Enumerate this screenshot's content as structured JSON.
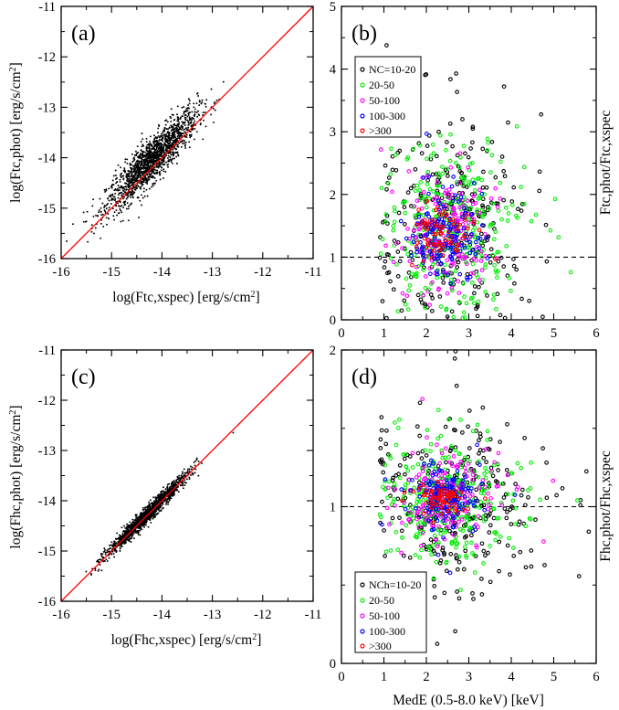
{
  "chart_data": [
    {
      "panel": "a",
      "type": "scatter",
      "panel_label": "(a)",
      "xlabel": "log(Ftc,xspec) [erg/s/cm",
      "ylabel": "log(Ftc,phot) [erg/s/cm",
      "unit_exponent": "2",
      "xlim": [
        -16,
        -11
      ],
      "ylim": [
        -16,
        -11
      ],
      "xticks": [
        "-16",
        "-15",
        "-14",
        "-13",
        "-12",
        "-11"
      ],
      "yticks": [
        "-16",
        "-15",
        "-14",
        "-13",
        "-12",
        "-11"
      ],
      "reference_line": {
        "type": "y=x",
        "color": "#ff0000"
      },
      "series": [
        {
          "color": "#000000",
          "n_points": 1600,
          "x_center": -14.2,
          "x_spread": 0.45,
          "bias": 0.15,
          "y_scatter": 0.22
        }
      ]
    },
    {
      "panel": "b",
      "type": "scatter",
      "panel_label": "(b)",
      "xlabel": "",
      "ylabel": "Ftc,phot/Ftc,xspec",
      "xlim": [
        0,
        6
      ],
      "ylim": [
        0,
        5
      ],
      "xticks": [
        "0",
        "1",
        "2",
        "3",
        "4",
        "5",
        "6"
      ],
      "yticks": [
        "0",
        "1",
        "2",
        "3",
        "4",
        "5"
      ],
      "reference_line": {
        "type": "y=1",
        "style": "dashed",
        "color": "#000000"
      },
      "legend_position": "upper-left",
      "series": [
        {
          "name": "NC=10-20",
          "color": "#000000",
          "n_points": 300,
          "x_center": 2.6,
          "x_spread": 1.0,
          "y_center": 1.5,
          "y_spread": 0.85
        },
        {
          "name": "20-50",
          "color": "#00ee00",
          "n_points": 330,
          "x_center": 2.5,
          "x_spread": 0.8,
          "y_center": 1.45,
          "y_spread": 0.65
        },
        {
          "name": "50-100",
          "color": "#ff00ff",
          "n_points": 160,
          "x_center": 2.5,
          "x_spread": 0.6,
          "y_center": 1.4,
          "y_spread": 0.45
        },
        {
          "name": "100-300",
          "color": "#0000ff",
          "n_points": 150,
          "x_center": 2.45,
          "x_spread": 0.45,
          "y_center": 1.4,
          "y_spread": 0.32
        },
        {
          "name": ">300",
          "color": "#ff0000",
          "n_points": 70,
          "x_center": 2.3,
          "x_spread": 0.35,
          "y_center": 1.35,
          "y_spread": 0.18
        }
      ]
    },
    {
      "panel": "c",
      "type": "scatter",
      "panel_label": "(c)",
      "xlabel": "log(Fhc,xspec) [erg/s/cm",
      "ylabel": "log(Fhc,phot) [erg/s/cm",
      "unit_exponent": "2",
      "xlim": [
        -16,
        -11
      ],
      "ylim": [
        -16,
        -11
      ],
      "xticks": [
        "-16",
        "-15",
        "-14",
        "-13",
        "-12",
        "-11"
      ],
      "yticks": [
        "-16",
        "-15",
        "-14",
        "-13",
        "-12",
        "-11"
      ],
      "reference_line": {
        "type": "y=x",
        "color": "#ff0000"
      },
      "series": [
        {
          "color": "#000000",
          "n_points": 1500,
          "x_center": -14.3,
          "x_spread": 0.4,
          "bias": 0.02,
          "y_scatter": 0.08
        }
      ]
    },
    {
      "panel": "d",
      "type": "scatter",
      "panel_label": "(d)",
      "xlabel": "MedE (0.5-8.0 keV) [keV]",
      "ylabel": "Fhc,phot/Fhc,xspec",
      "xlim": [
        0,
        6
      ],
      "ylim": [
        0,
        2
      ],
      "xticks": [
        "0",
        "1",
        "2",
        "3",
        "4",
        "5",
        "6"
      ],
      "yticks": [
        "0",
        "1",
        "2"
      ],
      "reference_line": {
        "type": "y=1",
        "style": "dashed",
        "color": "#000000"
      },
      "legend_position": "lower-left",
      "series": [
        {
          "name": "NCh=10-20",
          "color": "#000000",
          "n_points": 300,
          "x_center": 2.6,
          "x_spread": 1.0,
          "y_center": 1.02,
          "y_spread": 0.28
        },
        {
          "name": "20-50",
          "color": "#00ee00",
          "n_points": 330,
          "x_center": 2.5,
          "x_spread": 0.8,
          "y_center": 1.04,
          "y_spread": 0.2
        },
        {
          "name": "50-100",
          "color": "#ff00ff",
          "n_points": 160,
          "x_center": 2.5,
          "x_spread": 0.6,
          "y_center": 1.05,
          "y_spread": 0.13
        },
        {
          "name": "100-300",
          "color": "#0000ff",
          "n_points": 150,
          "x_center": 2.45,
          "x_spread": 0.45,
          "y_center": 1.05,
          "y_spread": 0.09
        },
        {
          "name": ">300",
          "color": "#ff0000",
          "n_points": 70,
          "x_center": 2.3,
          "x_spread": 0.35,
          "y_center": 1.05,
          "y_spread": 0.04
        }
      ]
    }
  ]
}
